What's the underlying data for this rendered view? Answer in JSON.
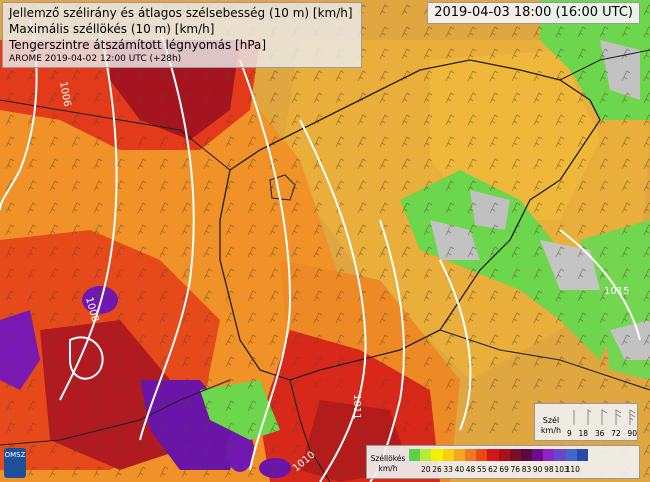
{
  "header": {
    "line1": "Jellemző szélirány és átlagos szélsebesség (10 m) [km/h]",
    "line2": "Maximális széllökés (10 m) [km/h]",
    "line3": "Tengerszintre átszámított légnyomás [hPa]",
    "line4": "AROME 2019-04-02 12:00 UTC (+28h)"
  },
  "valid_time": "2019-04-03 18:00 (16:00 UTC)",
  "logo_text": "OMSZ",
  "isobar_labels": [
    "1006",
    "1008",
    "1011",
    "1010",
    "1015"
  ],
  "wind_legend": {
    "title_line1": "Szél",
    "title_line2": "km/h",
    "values": [
      "9",
      "18",
      "36",
      "72",
      "90"
    ]
  },
  "gust_legend": {
    "title_line1": "Széllökés",
    "title_line2": "km/h",
    "ticks": [
      "",
      "20",
      "26",
      "33",
      "40",
      "48",
      "55",
      "62",
      "69",
      "76",
      "83",
      "90",
      "98",
      "103",
      "110",
      ""
    ],
    "colors": [
      "#5ad24a",
      "#b9ea38",
      "#f4f000",
      "#f9cf10",
      "#f5a81f",
      "#f07a22",
      "#e84a16",
      "#d2161a",
      "#a8101e",
      "#7c0c2a",
      "#5a0a3c",
      "#6e0a8e",
      "#8c24c8",
      "#6848c8",
      "#4466cc",
      "#2a48aa"
    ]
  },
  "colors": {
    "background": "#e0a640",
    "green": "#6cd64c",
    "grey": "#bfbfbf",
    "red": "#e23a1a",
    "darkred": "#9e1222",
    "purple": "#7a18b4"
  }
}
